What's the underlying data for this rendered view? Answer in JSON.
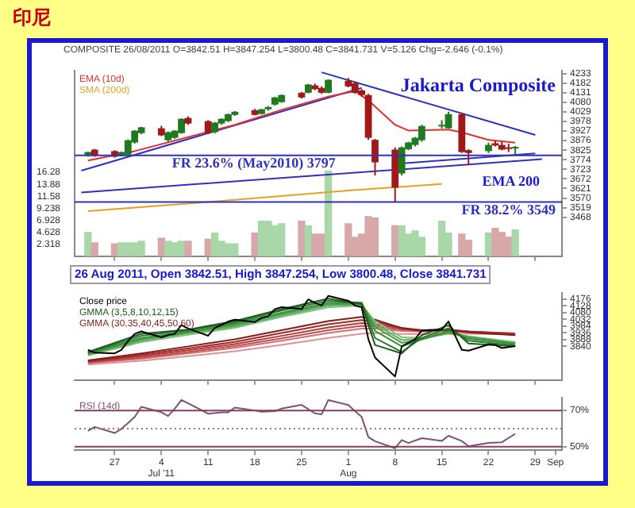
{
  "chart_data": [
    {
      "type": "candlestick",
      "title": "印尼",
      "subtitle": "COMPOSITE 26/08/2011 O=3842.51 H=3847.254 L=3800.48 C=3841.731 V=5.126 Chg=-2.646 (-0.1%)",
      "x": [
        "2011-06-23",
        "2011-06-24",
        "2011-06-27",
        "2011-06-28",
        "2011-06-29",
        "2011-06-30",
        "2011-07-01",
        "2011-07-04",
        "2011-07-05",
        "2011-07-06",
        "2011-07-07",
        "2011-07-08",
        "2011-07-11",
        "2011-07-12",
        "2011-07-13",
        "2011-07-14",
        "2011-07-15",
        "2011-07-18",
        "2011-07-19",
        "2011-07-20",
        "2011-07-21",
        "2011-07-22",
        "2011-07-25",
        "2011-07-26",
        "2011-07-27",
        "2011-07-28",
        "2011-07-29",
        "2011-08-01",
        "2011-08-02",
        "2011-08-03",
        "2011-08-04",
        "2011-08-05",
        "2011-08-08",
        "2011-08-09",
        "2011-08-10",
        "2011-08-11",
        "2011-08-12",
        "2011-08-15",
        "2011-08-16",
        "2011-08-18",
        "2011-08-19",
        "2011-08-22",
        "2011-08-23",
        "2011-08-24",
        "2011-08-25",
        "2011-08-26"
      ],
      "ohlc": [
        [
          3797,
          3818,
          3790,
          3815
        ],
        [
          3828,
          3832,
          3790,
          3795
        ],
        [
          3820,
          3825,
          3785,
          3790
        ],
        [
          3795,
          3818,
          3792,
          3815
        ],
        [
          3802,
          3882,
          3800,
          3878
        ],
        [
          3866,
          3932,
          3860,
          3929
        ],
        [
          3916,
          3950,
          3910,
          3947
        ],
        [
          3942,
          3955,
          3900,
          3904
        ],
        [
          3878,
          3925,
          3870,
          3921
        ],
        [
          3891,
          3932,
          3885,
          3929
        ],
        [
          3916,
          3995,
          3912,
          3992
        ],
        [
          3997,
          4005,
          3960,
          3967
        ],
        [
          3980,
          3985,
          3910,
          3916
        ],
        [
          3921,
          3975,
          3915,
          3972
        ],
        [
          3967,
          3995,
          3960,
          3992
        ],
        [
          3980,
          4020,
          3975,
          4017
        ],
        [
          4013,
          4033,
          4008,
          4030
        ],
        [
          4038,
          4045,
          4010,
          4013
        ],
        [
          4018,
          4046,
          4015,
          4043
        ],
        [
          4043,
          4060,
          4035,
          4055
        ],
        [
          4068,
          4110,
          4062,
          4106
        ],
        [
          4081,
          4122,
          4078,
          4119
        ],
        [
          4131,
          4135,
          4100,
          4106
        ],
        [
          4131,
          4178,
          4128,
          4175
        ],
        [
          4170,
          4180,
          4145,
          4150
        ],
        [
          4157,
          4165,
          4125,
          4131
        ],
        [
          4131,
          4203,
          4128,
          4200
        ],
        [
          4195,
          4210,
          4160,
          4165
        ],
        [
          4182,
          4190,
          4125,
          4131
        ],
        [
          4144,
          4150,
          4110,
          4119
        ],
        [
          4119,
          4125,
          3880,
          3891
        ],
        [
          3880,
          3885,
          3690,
          3760
        ],
        [
          3828,
          3840,
          3549,
          3625
        ],
        [
          3701,
          3845,
          3690,
          3840
        ],
        [
          3830,
          3870,
          3825,
          3866
        ],
        [
          3853,
          3895,
          3845,
          3891
        ],
        [
          3878,
          3960,
          3870,
          3954
        ],
        [
          3954,
          3985,
          3940,
          3960
        ],
        [
          3942,
          4030,
          3940,
          4017
        ],
        [
          4017,
          4025,
          3810,
          3815
        ],
        [
          3825,
          3830,
          3745,
          3810
        ],
        [
          3820,
          3865,
          3810,
          3853
        ],
        [
          3862,
          3875,
          3845,
          3850
        ],
        [
          3853,
          3870,
          3825,
          3828
        ],
        [
          3840,
          3860,
          3815,
          3835
        ],
        [
          3842.51,
          3847.254,
          3800.48,
          3841.731
        ]
      ],
      "colors": [
        "#1f7a1f",
        "#a01818",
        "#a01818",
        "#1f7a1f",
        "#1f7a1f",
        "#1f7a1f",
        "#1f7a1f",
        "#a01818",
        "#1f7a1f",
        "#1f7a1f",
        "#1f7a1f",
        "#a01818",
        "#a01818",
        "#1f7a1f",
        "#1f7a1f",
        "#1f7a1f",
        "#1f7a1f",
        "#a01818",
        "#1f7a1f",
        "#1f7a1f",
        "#1f7a1f",
        "#1f7a1f",
        "#a01818",
        "#1f7a1f",
        "#a01818",
        "#a01818",
        "#1f7a1f",
        "#a01818",
        "#a01818",
        "#a01818",
        "#a01818",
        "#a01818",
        "#a01818",
        "#1f7a1f",
        "#1f7a1f",
        "#1f7a1f",
        "#1f7a1f",
        "#1f7a1f",
        "#1f7a1f",
        "#a01818",
        "#a01818",
        "#1f7a1f",
        "#a01818",
        "#a01818",
        "#a01818",
        "#1f7a1f"
      ],
      "series": [
        {
          "type": "line",
          "name": "EMA (10d)",
          "color": "#e03030",
          "x": [
            "2011-06-23",
            "2011-06-30",
            "2011-07-08",
            "2011-07-15",
            "2011-07-22",
            "2011-07-29",
            "2011-08-02",
            "2011-08-04",
            "2011-08-08",
            "2011-08-10",
            "2011-08-16",
            "2011-08-18",
            "2011-08-22",
            "2011-08-26"
          ],
          "values": [
            3770,
            3820,
            3895,
            3960,
            4040,
            4110,
            4140,
            4090,
            3960,
            3930,
            3935,
            3920,
            3880,
            3865
          ]
        },
        {
          "type": "line",
          "name": "SMA (200d)",
          "color": "#e8a020",
          "x": [
            "2011-06-23",
            "2011-07-15",
            "2011-08-01",
            "2011-08-15"
          ],
          "values": [
            3500,
            3560,
            3610,
            3645
          ]
        },
        {
          "type": "line",
          "color": "#3030c0",
          "x": [
            "2011-06-22",
            "2011-08-03"
          ],
          "values": [
            3716,
            4157
          ]
        },
        {
          "type": "line",
          "color": "#3030c0",
          "x": [
            "2011-06-22",
            "2011-08-30"
          ],
          "values": [
            3600,
            3777
          ]
        },
        {
          "type": "line",
          "color": "#3030c0",
          "x": [
            "2011-07-28",
            "2011-08-29"
          ],
          "values": [
            4240,
            3906
          ]
        },
        {
          "type": "line",
          "color": "#3030c0",
          "x": [
            "2011-08-09",
            "2011-08-29"
          ],
          "values": [
            3754,
            3808
          ]
        },
        {
          "type": "bar",
          "axis": "y2",
          "x": [
            "2011-06-23",
            "2011-06-24",
            "2011-06-27",
            "2011-06-28",
            "2011-06-29",
            "2011-06-30",
            "2011-07-01",
            "2011-07-04",
            "2011-07-05",
            "2011-07-06",
            "2011-07-07",
            "2011-07-08",
            "2011-07-11",
            "2011-07-12",
            "2011-07-13",
            "2011-07-14",
            "2011-07-15",
            "2011-07-18",
            "2011-07-19",
            "2011-07-20",
            "2011-07-21",
            "2011-07-22",
            "2011-07-25",
            "2011-07-26",
            "2011-07-27",
            "2011-07-28",
            "2011-07-29",
            "2011-08-01",
            "2011-08-02",
            "2011-08-03",
            "2011-08-04",
            "2011-08-05",
            "2011-08-08",
            "2011-08-09",
            "2011-08-10",
            "2011-08-11",
            "2011-08-12",
            "2011-08-15",
            "2011-08-16",
            "2011-08-18",
            "2011-08-19",
            "2011-08-22",
            "2011-08-23",
            "2011-08-24",
            "2011-08-25",
            "2011-08-26"
          ],
          "values": [
            4.6,
            2.6,
            2.4,
            2.6,
            2.6,
            2.6,
            2.9,
            3.5,
            2.9,
            2.6,
            2.9,
            2.9,
            3.3,
            4.5,
            2.9,
            2.4,
            2.4,
            4.5,
            6.8,
            6.8,
            5.9,
            6.3,
            6.8,
            5.9,
            4.3,
            4.3,
            16.5,
            6.3,
            3.7,
            4.3,
            7.7,
            7.4,
            5.9,
            5.9,
            4.3,
            4.9,
            3.7,
            6.8,
            4.5,
            4.3,
            3.1,
            4.5,
            5.4,
            4.6,
            3.7,
            5.1
          ],
          "colors": [
            "#a8d8a8",
            "#d8a8a8",
            "#d8a8a8",
            "#a8d8a8",
            "#a8d8a8",
            "#a8d8a8",
            "#a8d8a8",
            "#d8a8a8",
            "#a8d8a8",
            "#a8d8a8",
            "#a8d8a8",
            "#d8a8a8",
            "#d8a8a8",
            "#a8d8a8",
            "#a8d8a8",
            "#a8d8a8",
            "#a8d8a8",
            "#d8a8a8",
            "#a8d8a8",
            "#a8d8a8",
            "#a8d8a8",
            "#a8d8a8",
            "#d8a8a8",
            "#a8d8a8",
            "#d8a8a8",
            "#d8a8a8",
            "#a8d8a8",
            "#d8a8a8",
            "#d8a8a8",
            "#d8a8a8",
            "#d8a8a8",
            "#d8a8a8",
            "#d8a8a8",
            "#a8d8a8",
            "#a8d8a8",
            "#a8d8a8",
            "#a8d8a8",
            "#a8d8a8",
            "#a8d8a8",
            "#d8a8a8",
            "#d8a8a8",
            "#a8d8a8",
            "#d8a8a8",
            "#d8a8a8",
            "#d8a8a8",
            "#a8d8a8"
          ]
        }
      ],
      "xlim": [
        "2011-06-21",
        "2011-09-02"
      ],
      "xticks": [
        {
          "value": "2011-06-27",
          "label": null
        },
        {
          "value": "2011-07-04",
          "label": null
        },
        {
          "value": "2011-07-11",
          "label": null
        },
        {
          "value": "2011-07-18",
          "label": null
        },
        {
          "value": "2011-07-25",
          "label": null
        },
        {
          "value": "2011-08-01",
          "label": null
        },
        {
          "value": "2011-08-08",
          "label": null
        },
        {
          "value": "2011-08-15",
          "label": null
        },
        {
          "value": "2011-08-22",
          "label": null
        },
        {
          "value": "2011-08-29",
          "label": null
        }
      ],
      "ylim": [
        3260,
        4248
      ],
      "yticks": [
        4233,
        4182,
        4131,
        4080,
        4029,
        3978,
        3927,
        3876,
        3825,
        3774,
        3723,
        3672,
        3621,
        3570,
        3519,
        3468
      ],
      "y2lim": [
        0,
        36
      ],
      "y2ticks": [
        16.28,
        13.88,
        11.58,
        9.238,
        6.928,
        4.628,
        2.318
      ],
      "tick_labels": "y",
      "legend": "top left",
      "ref_lines": [
        {
          "axis": "y",
          "value": 3797,
          "label": "FR 23.6% (May2010) 3797",
          "color": "#3030c0"
        },
        {
          "axis": "y",
          "value": 3549,
          "label": "FR 38.2% 3549",
          "color": "#3030c0"
        }
      ],
      "annotations": [
        "Jakarta Composite",
        "EMA 200",
        "26 Aug 2011, Open 3842.51, High 3847.254, Low 3800.48, Close 3841.731"
      ]
    },
    {
      "type": "line",
      "xlim": [
        "2011-06-21",
        "2011-09-02"
      ],
      "xticks": [
        {
          "value": "2011-06-27",
          "label": null
        },
        {
          "value": "2011-07-04",
          "label": null
        },
        {
          "value": "2011-07-11",
          "label": null
        },
        {
          "value": "2011-07-18",
          "label": null
        },
        {
          "value": "2011-07-25",
          "label": null
        },
        {
          "value": "2011-08-01",
          "label": null
        },
        {
          "value": "2011-08-08",
          "label": null
        },
        {
          "value": "2011-08-15",
          "label": null
        },
        {
          "value": "2011-08-22",
          "label": null
        },
        {
          "value": "2011-08-29",
          "label": null
        }
      ],
      "ylim": [
        3600,
        4220
      ],
      "yticks": [
        4176,
        4128,
        4080,
        4032,
        3984,
        3936,
        3888,
        3840
      ],
      "tick_labels": "y",
      "legend": "top left",
      "x": [
        "2011-06-23",
        "2011-07-01",
        "2011-07-08",
        "2011-07-15",
        "2011-07-22",
        "2011-07-29",
        "2011-08-03",
        "2011-08-05",
        "2011-08-09",
        "2011-08-12",
        "2011-08-16",
        "2011-08-19",
        "2011-08-26"
      ],
      "series": [
        {
          "name": "Close price",
          "color": "#000000",
          "x": [
            "2011-06-23",
            "2011-06-24",
            "2011-06-27",
            "2011-06-28",
            "2011-06-29",
            "2011-06-30",
            "2011-07-01",
            "2011-07-04",
            "2011-07-05",
            "2011-07-06",
            "2011-07-07",
            "2011-07-08",
            "2011-07-11",
            "2011-07-12",
            "2011-07-13",
            "2011-07-14",
            "2011-07-15",
            "2011-07-18",
            "2011-07-19",
            "2011-07-20",
            "2011-07-21",
            "2011-07-22",
            "2011-07-25",
            "2011-07-26",
            "2011-07-27",
            "2011-07-28",
            "2011-07-29",
            "2011-08-01",
            "2011-08-02",
            "2011-08-03",
            "2011-08-04",
            "2011-08-05",
            "2011-08-08",
            "2011-08-09",
            "2011-08-10",
            "2011-08-11",
            "2011-08-12",
            "2011-08-15",
            "2011-08-16",
            "2011-08-18",
            "2011-08-19",
            "2011-08-22",
            "2011-08-23",
            "2011-08-24",
            "2011-08-25",
            "2011-08-26"
          ],
          "values": [
            3815,
            3795,
            3790,
            3815,
            3878,
            3929,
            3947,
            3904,
            3921,
            3929,
            3992,
            3967,
            3916,
            3972,
            3992,
            4017,
            4030,
            4013,
            4043,
            4055,
            4106,
            4119,
            4106,
            4175,
            4150,
            4131,
            4200,
            4165,
            4131,
            4119,
            3891,
            3760,
            3625,
            3840,
            3866,
            3891,
            3954,
            3960,
            4017,
            3815,
            3810,
            3853,
            3850,
            3828,
            3835,
            3841.731
          ]
        },
        {
          "name": "GMMA (3,5,8,10,12,15)",
          "color": "#1a5e1a",
          "values": [
            3800,
            3930,
            3960,
            4020,
            4105,
            4180,
            4140,
            3850,
            3790,
            3920,
            3990,
            3860,
            3840
          ]
        },
        {
          "color": "#2a7a2a",
          "values": [
            3795,
            3915,
            3955,
            4010,
            4095,
            4165,
            4150,
            3900,
            3800,
            3900,
            3970,
            3880,
            3845
          ]
        },
        {
          "color": "#3a903a",
          "values": [
            3790,
            3900,
            3945,
            4000,
            4080,
            4150,
            4150,
            3950,
            3840,
            3890,
            3950,
            3895,
            3855
          ]
        },
        {
          "color": "#4aa04a",
          "values": [
            3785,
            3890,
            3940,
            3990,
            4070,
            4140,
            4145,
            3980,
            3865,
            3890,
            3940,
            3905,
            3860
          ]
        },
        {
          "color": "#60b060",
          "values": [
            3780,
            3880,
            3932,
            3982,
            4060,
            4130,
            4140,
            4000,
            3885,
            3895,
            3935,
            3910,
            3865
          ]
        },
        {
          "color": "#80c080",
          "values": [
            3775,
            3870,
            3922,
            3972,
            4050,
            4118,
            4132,
            4020,
            3905,
            3900,
            3930,
            3912,
            3870
          ]
        },
        {
          "name": "GMMA (30,35,40,45,50,60)",
          "color": "#8b1a1a",
          "values": [
            3740,
            3790,
            3840,
            3890,
            3955,
            4020,
            4050,
            4030,
            3970,
            3950,
            3955,
            3940,
            3920
          ]
        },
        {
          "color": "#a02a2a",
          "values": [
            3735,
            3780,
            3825,
            3872,
            3935,
            3998,
            4028,
            4015,
            3972,
            3955,
            3958,
            3945,
            3925
          ]
        },
        {
          "color": "#b03a3a",
          "values": [
            3730,
            3770,
            3812,
            3856,
            3915,
            3975,
            4006,
            3998,
            3968,
            3955,
            3958,
            3947,
            3930
          ]
        },
        {
          "color": "#c05050",
          "values": [
            3725,
            3760,
            3800,
            3842,
            3897,
            3955,
            3986,
            3982,
            3960,
            3952,
            3955,
            3946,
            3932
          ]
        },
        {
          "color": "#d07070",
          "values": [
            3720,
            3752,
            3790,
            3830,
            3880,
            3936,
            3967,
            3966,
            3950,
            3946,
            3950,
            3943,
            3932
          ]
        },
        {
          "color": "#e09090",
          "values": [
            3710,
            3738,
            3770,
            3805,
            3850,
            3900,
            3930,
            3935,
            3928,
            3928,
            3932,
            3930,
            3925
          ]
        }
      ]
    },
    {
      "type": "line",
      "xlim": [
        "2011-06-21",
        "2011-09-02"
      ],
      "xticks": [
        {
          "value": "2011-06-27",
          "label": "27"
        },
        {
          "value": "2011-07-04",
          "label": "4\nJul '11"
        },
        {
          "value": "2011-07-11",
          "label": "11"
        },
        {
          "value": "2011-07-18",
          "label": "18"
        },
        {
          "value": "2011-07-25",
          "label": "25"
        },
        {
          "value": "2011-08-01",
          "label": "1\nAug"
        },
        {
          "value": "2011-08-08",
          "label": "8"
        },
        {
          "value": "2011-08-15",
          "label": "15"
        },
        {
          "value": "2011-08-22",
          "label": "22"
        },
        {
          "value": "2011-08-29",
          "label": "29"
        },
        {
          "value": "2011-09-01",
          "label": "Sep"
        }
      ],
      "ylim": [
        48,
        77
      ],
      "yticks": [
        {
          "value": 70,
          "label": "70%"
        },
        {
          "value": 50,
          "label": "50%"
        }
      ],
      "legend": "top left",
      "ref_lines": [
        {
          "axis": "y",
          "value": 70,
          "color": "#804060"
        },
        {
          "axis": "y",
          "value": 50,
          "color": "#804060"
        },
        {
          "axis": "y",
          "value": 60,
          "color": "#808080",
          "line_style": "dotted"
        }
      ],
      "series": [
        {
          "name": "RSI (14d)",
          "color": "#805070",
          "x": [
            "2011-06-23",
            "2011-06-24",
            "2011-06-27",
            "2011-06-28",
            "2011-06-29",
            "2011-06-30",
            "2011-07-01",
            "2011-07-04",
            "2011-07-05",
            "2011-07-06",
            "2011-07-07",
            "2011-07-08",
            "2011-07-11",
            "2011-07-13",
            "2011-07-14",
            "2011-07-15",
            "2011-07-18",
            "2011-07-19",
            "2011-07-21",
            "2011-07-22",
            "2011-07-25",
            "2011-07-27",
            "2011-07-28",
            "2011-07-29",
            "2011-08-01",
            "2011-08-02",
            "2011-08-03",
            "2011-08-04",
            "2011-08-05",
            "2011-08-08",
            "2011-08-09",
            "2011-08-10",
            "2011-08-12",
            "2011-08-15",
            "2011-08-16",
            "2011-08-18",
            "2011-08-19",
            "2011-08-22",
            "2011-08-24",
            "2011-08-26"
          ],
          "values": [
            58.7,
            60.9,
            57.5,
            59.8,
            63,
            66.4,
            72,
            69,
            66.9,
            71,
            75.8,
            74,
            68.2,
            69,
            69,
            71.6,
            70,
            69.3,
            69.6,
            71,
            73.1,
            68.4,
            67.9,
            75.8,
            73,
            69.6,
            66.4,
            55.3,
            53,
            49.1,
            53.6,
            52,
            54.7,
            53.1,
            56,
            53.1,
            50.2,
            52,
            52.4,
            57.1
          ]
        }
      ]
    }
  ]
}
